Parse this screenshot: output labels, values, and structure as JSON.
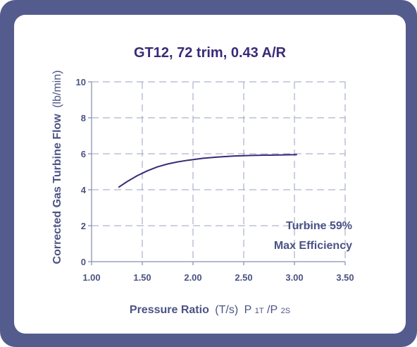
{
  "chart_data": {
    "type": "line",
    "title": "GT12, 72 trim, 0.43 A/R",
    "xlabel_bold": "Pressure Ratio",
    "xlabel_paren": "(T/s)",
    "xlabel_p": "P",
    "xlabel_sub1": "1T",
    "xlabel_slash": "/P",
    "xlabel_sub2": "2S",
    "ylabel_bold": "Corrected Gas Turbine Flow",
    "ylabel_unit": "(lb/min)",
    "xlim": [
      1.0,
      3.5
    ],
    "ylim": [
      0,
      10
    ],
    "x_ticks": [
      "1.00",
      "1.50",
      "2.00",
      "2.50",
      "3.00",
      "3.50"
    ],
    "y_ticks": [
      "0",
      "2",
      "4",
      "6",
      "8",
      "10"
    ],
    "grid": true,
    "annotation": [
      "Turbine 59%",
      "Max Efficiency"
    ],
    "line_color": "#3a2a78",
    "series": [
      {
        "x": [
          1.27,
          1.35,
          1.45,
          1.55,
          1.65,
          1.75,
          1.85,
          1.95,
          2.1,
          2.25,
          2.4,
          2.55,
          2.7,
          2.85,
          3.02
        ],
        "y": [
          4.15,
          4.45,
          4.78,
          5.05,
          5.27,
          5.43,
          5.55,
          5.64,
          5.75,
          5.82,
          5.87,
          5.9,
          5.92,
          5.93,
          5.95
        ]
      }
    ]
  }
}
